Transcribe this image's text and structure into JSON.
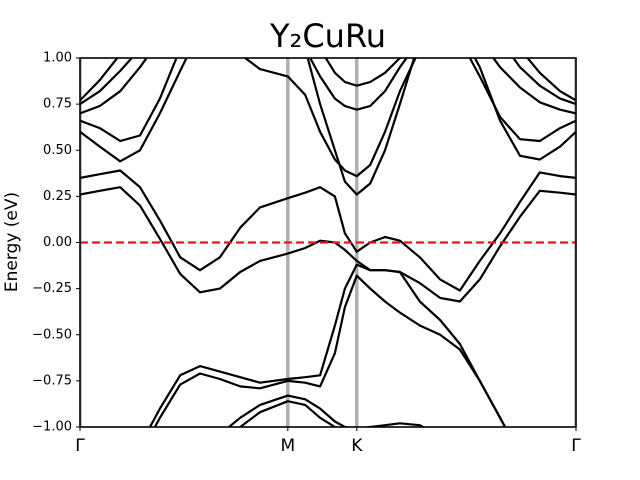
{
  "chart_data": {
    "type": "line",
    "title": "Y₂CuRu",
    "y_label": "Energy (eV)",
    "xlim": [
      0,
      1
    ],
    "xticks": [
      {
        "value": 0,
        "label": "Γ"
      },
      {
        "value": 0.419,
        "label": "M"
      },
      {
        "value": 0.558,
        "label": "K"
      },
      {
        "value": 1,
        "label": "Γ"
      }
    ],
    "kpoint_line_color": "#b0b0b0",
    "ylim": [
      -1,
      1
    ],
    "yticks": [
      {
        "value": 1,
        "label": "1.00"
      },
      {
        "value": 0.75,
        "label": "0.75"
      },
      {
        "value": 0.5,
        "label": "0.50"
      },
      {
        "value": 0.25,
        "label": "0.25"
      },
      {
        "value": 0,
        "label": "0.00"
      },
      {
        "value": -0.25,
        "label": "−0.25"
      },
      {
        "value": -0.5,
        "label": "−0.50"
      },
      {
        "value": -0.75,
        "label": "−0.75"
      },
      {
        "value": -1,
        "label": "−1.00"
      }
    ],
    "fermi_level": 0,
    "fermi_color": "#e8161b",
    "line_color": "#000000",
    "x": [
      0,
      0.04,
      0.081,
      0.121,
      0.161,
      0.202,
      0.242,
      0.282,
      0.323,
      0.363,
      0.419,
      0.454,
      0.484,
      0.514,
      0.534,
      0.558,
      0.585,
      0.615,
      0.645,
      0.685,
      0.726,
      0.766,
      0.806,
      0.847,
      0.887,
      0.927,
      0.968,
      1
    ],
    "series": [
      {
        "values": [
          0.35,
          0.37,
          0.39,
          0.3,
          0.12,
          -0.08,
          -0.15,
          -0.08,
          0.08,
          0.19,
          0.24,
          0.27,
          0.3,
          0.25,
          0.05,
          -0.05,
          0.0,
          0.03,
          0.01,
          -0.08,
          -0.2,
          -0.26,
          -0.1,
          0.05,
          0.22,
          0.38,
          0.36,
          0.35
        ]
      },
      {
        "values": [
          0.26,
          0.28,
          0.3,
          0.2,
          0.02,
          -0.17,
          -0.27,
          -0.25,
          -0.16,
          -0.1,
          -0.06,
          -0.03,
          0.01,
          0.0,
          -0.04,
          -0.1,
          -0.15,
          -0.15,
          -0.16,
          -0.22,
          -0.3,
          -0.32,
          -0.2,
          -0.02,
          0.14,
          0.28,
          0.27,
          0.26
        ]
      },
      {
        "values": [
          null,
          null,
          null,
          -1.1,
          -0.9,
          -0.72,
          -0.67,
          -0.7,
          -0.73,
          -0.76,
          -0.74,
          -0.73,
          -0.72,
          -0.45,
          -0.25,
          -0.12,
          -0.15,
          -0.15,
          -0.16,
          -0.32,
          -0.42,
          -0.55,
          -0.75,
          -0.95,
          -1.15,
          null,
          null,
          null
        ]
      },
      {
        "values": [
          null,
          null,
          null,
          -1.15,
          -0.95,
          -0.77,
          -0.71,
          -0.74,
          -0.78,
          -0.79,
          -0.75,
          -0.76,
          -0.78,
          -0.6,
          -0.35,
          -0.18,
          -0.25,
          -0.32,
          -0.38,
          -0.45,
          -0.5,
          -0.58,
          -0.75,
          -0.95,
          -1.15,
          null,
          null,
          null
        ]
      },
      {
        "values": [
          null,
          null,
          null,
          null,
          null,
          null,
          -1.2,
          -1.04,
          -0.95,
          -0.88,
          -0.83,
          -0.85,
          -0.9,
          -0.97,
          -1.0,
          -1.01,
          -1.0,
          -0.99,
          -0.98,
          -0.99,
          -1.05,
          null,
          null,
          null,
          null,
          null,
          null,
          null
        ]
      },
      {
        "values": [
          null,
          null,
          null,
          null,
          null,
          null,
          null,
          -1.1,
          -1.0,
          -0.92,
          -0.86,
          -0.88,
          -0.95,
          -1.0,
          -1.05,
          null,
          null,
          null,
          null,
          null,
          null,
          null,
          null,
          null,
          null,
          null,
          null,
          null
        ]
      },
      {
        "values": [
          null,
          null,
          null,
          null,
          null,
          null,
          null,
          null,
          null,
          null,
          null,
          1.05,
          0.75,
          0.5,
          0.33,
          0.26,
          0.32,
          0.5,
          0.75,
          1.1,
          null,
          null,
          null,
          null,
          null,
          null,
          null,
          null
        ]
      },
      {
        "values": [
          null,
          null,
          null,
          null,
          null,
          null,
          null,
          null,
          1.02,
          0.94,
          0.9,
          0.8,
          0.6,
          0.45,
          0.39,
          0.36,
          0.42,
          0.6,
          0.82,
          1.05,
          null,
          null,
          null,
          null,
          null,
          null,
          null,
          null
        ]
      },
      {
        "values": [
          null,
          null,
          null,
          null,
          null,
          null,
          null,
          null,
          null,
          null,
          null,
          1.05,
          0.9,
          0.78,
          0.74,
          0.72,
          0.74,
          0.82,
          0.95,
          1.1,
          null,
          null,
          null,
          null,
          null,
          null,
          null,
          null
        ]
      },
      {
        "values": [
          null,
          null,
          null,
          null,
          null,
          null,
          null,
          null,
          null,
          null,
          null,
          null,
          1.05,
          0.92,
          0.87,
          0.85,
          0.87,
          0.92,
          1.0,
          1.1,
          null,
          null,
          null,
          null,
          null,
          null,
          null,
          null
        ]
      },
      {
        "values": [
          0.6,
          0.52,
          0.44,
          0.5,
          0.7,
          0.93,
          1.15,
          null,
          null,
          null,
          null,
          null,
          null,
          null,
          null,
          null,
          null,
          null,
          null,
          null,
          null,
          1.15,
          0.95,
          0.66,
          0.47,
          0.45,
          0.52,
          0.6
        ]
      },
      {
        "values": [
          0.66,
          0.62,
          0.55,
          0.58,
          0.78,
          1.05,
          null,
          null,
          null,
          null,
          null,
          null,
          null,
          null,
          null,
          null,
          null,
          null,
          null,
          null,
          null,
          1.1,
          0.9,
          0.68,
          0.56,
          0.55,
          0.62,
          0.66
        ]
      },
      {
        "values": [
          0.7,
          0.74,
          0.82,
          0.95,
          1.1,
          null,
          null,
          null,
          null,
          null,
          null,
          null,
          null,
          null,
          null,
          null,
          null,
          null,
          null,
          null,
          null,
          null,
          1.1,
          0.95,
          0.84,
          0.76,
          0.72,
          0.7
        ]
      },
      {
        "values": [
          0.75,
          0.82,
          0.93,
          1.05,
          null,
          null,
          null,
          null,
          null,
          null,
          null,
          null,
          null,
          null,
          null,
          null,
          null,
          null,
          null,
          null,
          null,
          null,
          null,
          1.1,
          0.95,
          0.85,
          0.78,
          0.75
        ]
      },
      {
        "values": [
          0.77,
          0.88,
          1.02,
          null,
          null,
          null,
          null,
          null,
          null,
          null,
          null,
          null,
          null,
          null,
          null,
          null,
          null,
          null,
          null,
          null,
          null,
          null,
          null,
          null,
          1.05,
          0.92,
          0.82,
          0.77
        ]
      }
    ]
  }
}
